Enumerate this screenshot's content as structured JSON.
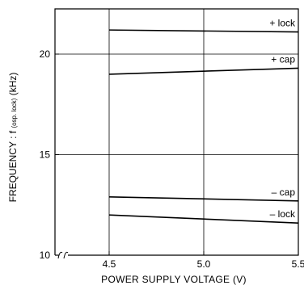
{
  "chart_data": {
    "type": "line",
    "xlabel": "POWER SUPPLY VOLTAGE (V)",
    "ylabel": {
      "main": "FREQUENCY : f",
      "subscript": "(osp. lock)",
      "unit": "(kHz)"
    },
    "xlim": [
      4.0,
      5.5
    ],
    "ylim": [
      10,
      22
    ],
    "x_ticks": [
      {
        "value": 4.5,
        "label": "4.5"
      },
      {
        "value": 5.0,
        "label": "5.0"
      },
      {
        "value": 5.5,
        "label": "5.5"
      }
    ],
    "y_ticks": [
      {
        "value": 10,
        "label": "10"
      },
      {
        "value": 15,
        "label": "15"
      },
      {
        "value": 20,
        "label": "20"
      }
    ],
    "axis_break": "x",
    "grid": true,
    "series": [
      {
        "name": "+ lock",
        "x": [
          4.5,
          5.5
        ],
        "y": [
          21.2,
          21.1
        ]
      },
      {
        "name": "+ cap",
        "x": [
          4.5,
          5.5
        ],
        "y": [
          19.0,
          19.3
        ]
      },
      {
        "name": "– cap",
        "x": [
          4.5,
          5.5
        ],
        "y": [
          12.9,
          12.7
        ]
      },
      {
        "name": "– lock",
        "x": [
          4.5,
          5.5
        ],
        "y": [
          12.0,
          11.6
        ]
      }
    ]
  }
}
